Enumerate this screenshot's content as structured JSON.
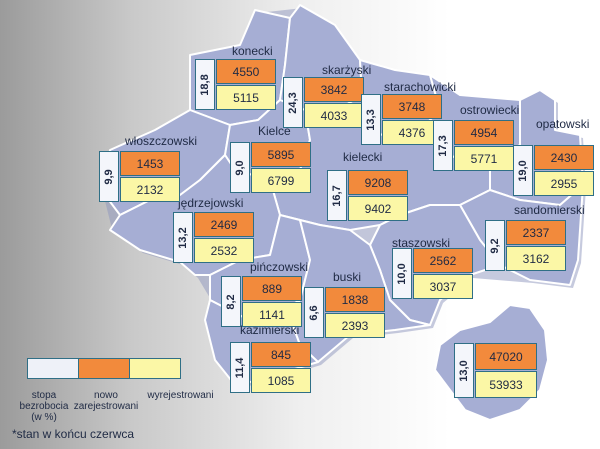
{
  "counties": [
    {
      "key": "konecki",
      "name": "konecki",
      "rate": "18,8",
      "new": "4550",
      "registered": "5115"
    },
    {
      "key": "skarzyski",
      "name": "skarżyski",
      "rate": "24,3",
      "new": "3842",
      "registered": "4033"
    },
    {
      "key": "starachowicki",
      "name": "starachowicki",
      "rate": "13,3",
      "new": "3748",
      "registered": "4376"
    },
    {
      "key": "ostrowiecki",
      "name": "ostrowiecki",
      "rate": "17,3",
      "new": "4954",
      "registered": "5771"
    },
    {
      "key": "opatowski",
      "name": "opatowski",
      "rate": "19,0",
      "new": "2430",
      "registered": "2955"
    },
    {
      "key": "wloszczowski",
      "name": "włoszczowski",
      "rate": "9,9",
      "new": "1453",
      "registered": "2132"
    },
    {
      "key": "kielce",
      "name": "Kielce",
      "rate": "9,0",
      "new": "5895",
      "registered": "6799"
    },
    {
      "key": "kielecki",
      "name": "kielecki",
      "rate": "16,7",
      "new": "9208",
      "registered": "9402"
    },
    {
      "key": "jedrzejowski",
      "name": "jędrzejowski",
      "rate": "13,2",
      "new": "2469",
      "registered": "2532"
    },
    {
      "key": "sandomierski",
      "name": "sandomierski",
      "rate": "9,2",
      "new": "2337",
      "registered": "3162"
    },
    {
      "key": "staszowski",
      "name": "staszowski",
      "rate": "10,0",
      "new": "2562",
      "registered": "3037"
    },
    {
      "key": "pinczowski",
      "name": "pińczowski",
      "rate": "8,2",
      "new": "889",
      "registered": "1141"
    },
    {
      "key": "buski",
      "name": "buski",
      "rate": "6,6",
      "new": "1838",
      "registered": "2393"
    },
    {
      "key": "kazimierski",
      "name": "kazimierski",
      "rate": "11,4",
      "new": "845",
      "registered": "1085"
    }
  ],
  "total": {
    "rate": "13,0",
    "new": "47020",
    "registered": "53933"
  },
  "legend": {
    "rate": [
      "stopa",
      "bezrobocia",
      "(w %)"
    ],
    "new": [
      "nowo",
      "zarejestrowani"
    ],
    "registered": [
      "wyrejestrowani"
    ]
  },
  "footnote": "*stan w końcu czerwca",
  "colors": {
    "region": "#a6aed4",
    "county_border": "#ffffff",
    "rate_box": "#f4f6fb",
    "new_box": "#f28a3c",
    "registered_box": "#fbf7a6",
    "box_border": "#2f6f86"
  }
}
